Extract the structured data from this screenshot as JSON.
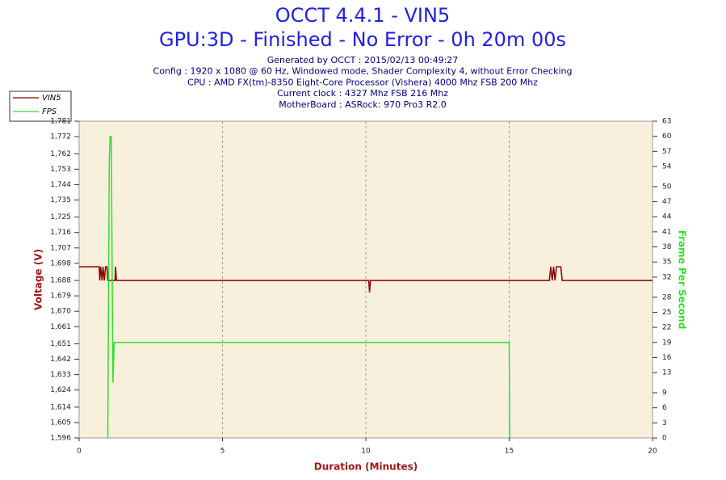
{
  "chart_data": {
    "type": "line",
    "title": "OCCT 4.4.1 - VIN5",
    "subtitle": "GPU:3D - Finished - No Error - 0h 20m 00s",
    "info": [
      "Generated by OCCT : 2015/02/13 00:49:27",
      "Config : 1920 x 1080 @ 60 Hz, Windowed mode, Shader Complexity 4, without Error Checking",
      "CPU : AMD FX(tm)-8350 Eight-Core Processor (Vishera) 4000 Mhz FSB 200 Mhz",
      "Current clock : 4327 Mhz FSB 216 Mhz",
      "MotherBoard : ASRock: 970 Pro3 R2.0"
    ],
    "xlabel": "Duration (Minutes)",
    "ylabel": "Voltage (V)",
    "y2label": "Frame Per Second",
    "xlim": [
      0,
      20
    ],
    "xticks": [
      0,
      5,
      10,
      15,
      20
    ],
    "ylim": [
      1.596,
      1.781
    ],
    "yticks": [
      {
        "value": 1.596,
        "label": "1,596"
      },
      {
        "value": 1.605,
        "label": "1,605"
      },
      {
        "value": 1.614,
        "label": "1,614"
      },
      {
        "value": 1.624,
        "label": "1,624"
      },
      {
        "value": 1.633,
        "label": "1,633"
      },
      {
        "value": 1.642,
        "label": "1,642"
      },
      {
        "value": 1.651,
        "label": "1,651"
      },
      {
        "value": 1.661,
        "label": "1,661"
      },
      {
        "value": 1.67,
        "label": "1,670"
      },
      {
        "value": 1.679,
        "label": "1,679"
      },
      {
        "value": 1.688,
        "label": "1,688"
      },
      {
        "value": 1.698,
        "label": "1,698"
      },
      {
        "value": 1.707,
        "label": "1,707"
      },
      {
        "value": 1.716,
        "label": "1,716"
      },
      {
        "value": 1.725,
        "label": "1,725"
      },
      {
        "value": 1.735,
        "label": "1,735"
      },
      {
        "value": 1.744,
        "label": "1,744"
      },
      {
        "value": 1.753,
        "label": "1,753"
      },
      {
        "value": 1.762,
        "label": "1,762"
      },
      {
        "value": 1.772,
        "label": "1,772"
      },
      {
        "value": 1.781,
        "label": "1,781"
      }
    ],
    "y2lim": [
      0,
      63
    ],
    "y2ticks": [
      0,
      3,
      6,
      9,
      13,
      16,
      19,
      22,
      25,
      28,
      32,
      35,
      38,
      41,
      44,
      47,
      50,
      54,
      57,
      60,
      63
    ],
    "grid": true,
    "legend": "top-left",
    "series": [
      {
        "name": "VIN5",
        "color": "#8b0000",
        "x": [
          0,
          0.7,
          0.72,
          0.75,
          0.8,
          0.83,
          0.88,
          0.92,
          0.97,
          1.0,
          1.25,
          1.27,
          1.3,
          10.1,
          10.13,
          10.16,
          16.4,
          16.45,
          16.5,
          16.55,
          16.6,
          16.65,
          16.8,
          16.85,
          20
        ],
        "values": [
          1.696,
          1.696,
          1.688,
          1.696,
          1.688,
          1.696,
          1.688,
          1.696,
          1.696,
          1.688,
          1.688,
          1.696,
          1.688,
          1.688,
          1.681,
          1.688,
          1.688,
          1.696,
          1.688,
          1.696,
          1.688,
          1.696,
          1.696,
          1.688,
          1.688
        ]
      },
      {
        "name": "FPS",
        "color": "#33dd33",
        "axis": "y2",
        "x": [
          1.0,
          1.05,
          1.08,
          1.12,
          1.15,
          1.18,
          1.22,
          15.0,
          15.02
        ],
        "values": [
          0,
          55,
          60,
          60,
          35,
          11,
          19,
          19,
          0
        ]
      }
    ]
  }
}
